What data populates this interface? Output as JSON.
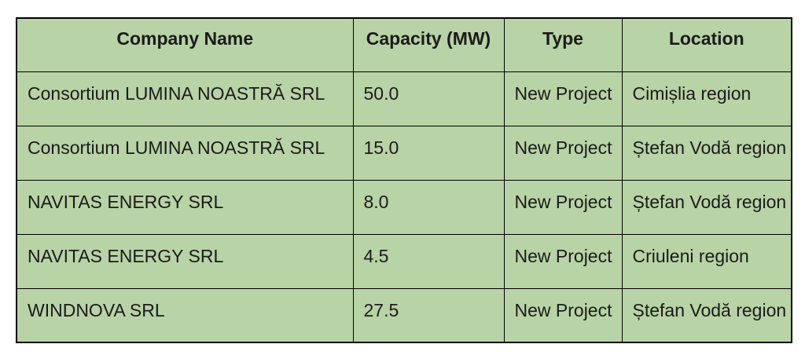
{
  "chart_data": {
    "type": "table",
    "title": "",
    "columns": [
      "Company Name",
      "Capacity (MW)",
      "Type",
      "Location"
    ],
    "rows": [
      [
        "Consortium LUMINA NOASTRĂ SRL",
        "50.0",
        "New Project",
        "Cimișlia region"
      ],
      [
        "Consortium LUMINA NOASTRĂ SRL",
        "15.0",
        "New Project",
        "Ștefan Vodă region"
      ],
      [
        "NAVITAS ENERGY SRL",
        "8.0",
        "New Project",
        "Ștefan Vodă region"
      ],
      [
        "NAVITAS ENERGY SRL",
        "4.5",
        "New Project",
        "Criuleni region"
      ],
      [
        "WINDNOVA SRL",
        "27.5",
        "New Project",
        "Ștefan Vodă region"
      ]
    ],
    "capacity_values_mw": [
      50.0,
      15.0,
      8.0,
      4.5,
      27.5
    ]
  },
  "table": {
    "headers": [
      "Company Name",
      "Capacity (MW)",
      "Type",
      "Location"
    ],
    "rows": [
      [
        "Consortium LUMINA NOASTRĂ SRL",
        "50.0",
        "New Project",
        "Cimișlia region"
      ],
      [
        "Consortium LUMINA NOASTRĂ SRL",
        "15.0",
        "New Project",
        "Ștefan Vodă region"
      ],
      [
        "NAVITAS ENERGY SRL",
        "8.0",
        "New Project",
        "Ștefan Vodă region"
      ],
      [
        "NAVITAS ENERGY SRL",
        "4.5",
        "New Project",
        "Criuleni region"
      ],
      [
        "WINDNOVA SRL",
        "27.5",
        "New Project",
        "Ștefan Vodă region"
      ]
    ],
    "column_keys": [
      "company",
      "capacity",
      "type",
      "location"
    ]
  },
  "colors": {
    "cell_background": "#b8d3a6",
    "border": "#000000",
    "text": "#1b1b1b",
    "page_background": "#ffffff"
  }
}
